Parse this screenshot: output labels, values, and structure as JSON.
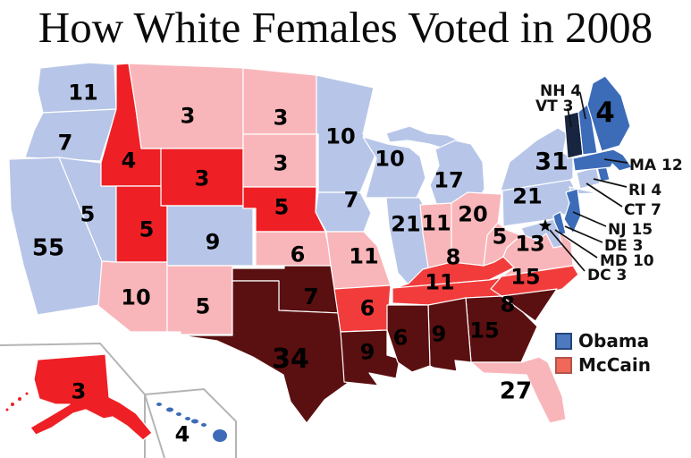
{
  "title": "How White Females Voted in 2008",
  "legend": {
    "items": [
      {
        "id": "obama",
        "label": "Obama",
        "swatch_fill": "#4d79c0",
        "swatch_border": "#24457c"
      },
      {
        "id": "mccain",
        "label": "McCain",
        "swatch_fill": "#f1685b",
        "swatch_border": "#b0544b"
      }
    ]
  },
  "palette": {
    "obama-dark": "#182540",
    "obama-medium": "#3c6cb8",
    "obama-light": "#b7c6e8",
    "mccain-light": "#f9b6ba",
    "mccain-medium": "#f23c3c",
    "mccain-strong": "#ee2025",
    "mccain-dark": "#5a0f10",
    "state_border": "#ffffff",
    "inset_border": "#b4b4b4",
    "label_color": "#000000"
  },
  "states": [
    {
      "abbr": "WA",
      "votes": "11",
      "category": "obama-light"
    },
    {
      "abbr": "OR",
      "votes": "7",
      "category": "obama-light"
    },
    {
      "abbr": "CA",
      "votes": "55",
      "category": "obama-light"
    },
    {
      "abbr": "NV",
      "votes": "5",
      "category": "obama-light"
    },
    {
      "abbr": "ID",
      "votes": "4",
      "category": "mccain-strong"
    },
    {
      "abbr": "MT",
      "votes": "3",
      "category": "mccain-light"
    },
    {
      "abbr": "WY",
      "votes": "3",
      "category": "mccain-strong"
    },
    {
      "abbr": "UT",
      "votes": "5",
      "category": "mccain-strong"
    },
    {
      "abbr": "CO",
      "votes": "9",
      "category": "obama-light"
    },
    {
      "abbr": "AZ",
      "votes": "10",
      "category": "mccain-light"
    },
    {
      "abbr": "NM",
      "votes": "5",
      "category": "mccain-light"
    },
    {
      "abbr": "ND",
      "votes": "3",
      "category": "mccain-light"
    },
    {
      "abbr": "SD",
      "votes": "3",
      "category": "mccain-light"
    },
    {
      "abbr": "NE",
      "votes": "5",
      "category": "mccain-strong"
    },
    {
      "abbr": "KS",
      "votes": "6",
      "category": "mccain-light"
    },
    {
      "abbr": "OK",
      "votes": "7",
      "category": "mccain-dark"
    },
    {
      "abbr": "TX",
      "votes": "34",
      "category": "mccain-dark"
    },
    {
      "abbr": "MN",
      "votes": "10",
      "category": "obama-light"
    },
    {
      "abbr": "IA",
      "votes": "7",
      "category": "obama-light"
    },
    {
      "abbr": "MO",
      "votes": "11",
      "category": "mccain-light"
    },
    {
      "abbr": "AR",
      "votes": "6",
      "category": "mccain-medium"
    },
    {
      "abbr": "LA",
      "votes": "9",
      "category": "mccain-dark"
    },
    {
      "abbr": "WI",
      "votes": "10",
      "category": "obama-light"
    },
    {
      "abbr": "IL",
      "votes": "21",
      "category": "obama-light"
    },
    {
      "abbr": "MI",
      "votes": "17",
      "category": "obama-light"
    },
    {
      "abbr": "IN",
      "votes": "11",
      "category": "mccain-light"
    },
    {
      "abbr": "OH",
      "votes": "20",
      "category": "mccain-light"
    },
    {
      "abbr": "KY",
      "votes": "8",
      "category": "mccain-medium"
    },
    {
      "abbr": "TN",
      "votes": "11",
      "category": "mccain-medium"
    },
    {
      "abbr": "WV",
      "votes": "5",
      "category": "mccain-light"
    },
    {
      "abbr": "VA",
      "votes": "13",
      "category": "mccain-light"
    },
    {
      "abbr": "NC",
      "votes": "15",
      "category": "mccain-medium"
    },
    {
      "abbr": "SC",
      "votes": "8",
      "category": "mccain-dark"
    },
    {
      "abbr": "GA",
      "votes": "15",
      "category": "mccain-dark"
    },
    {
      "abbr": "AL",
      "votes": "9",
      "category": "mccain-dark"
    },
    {
      "abbr": "MS",
      "votes": "6",
      "category": "mccain-dark"
    },
    {
      "abbr": "FL",
      "votes": "27",
      "category": "mccain-light"
    },
    {
      "abbr": "PA",
      "votes": "21",
      "category": "obama-light"
    },
    {
      "abbr": "NY",
      "votes": "31",
      "category": "obama-light"
    },
    {
      "abbr": "NJ",
      "votes": "15",
      "category": "obama-medium"
    },
    {
      "abbr": "CT",
      "votes": "7",
      "category": "obama-light"
    },
    {
      "abbr": "RI",
      "votes": "4",
      "category": "obama-medium"
    },
    {
      "abbr": "MA",
      "votes": "12",
      "category": "obama-medium"
    },
    {
      "abbr": "VT",
      "votes": "3",
      "category": "obama-dark"
    },
    {
      "abbr": "NH",
      "votes": "4",
      "category": "obama-medium"
    },
    {
      "abbr": "ME",
      "votes": "4",
      "category": "obama-medium"
    },
    {
      "abbr": "DE",
      "votes": "3",
      "category": "obama-medium"
    },
    {
      "abbr": "MD",
      "votes": "10",
      "category": "obama-light"
    },
    {
      "abbr": "DC",
      "votes": "3"
    },
    {
      "abbr": "AK",
      "votes": "3",
      "category": "mccain-strong"
    },
    {
      "abbr": "HI",
      "votes": "4",
      "category": "obama-medium"
    }
  ],
  "callouts": [
    {
      "abbr": "NH",
      "label": "NH 4"
    },
    {
      "abbr": "VT",
      "label": "VT 3"
    },
    {
      "abbr": "MA",
      "label": "MA 12"
    },
    {
      "abbr": "RI",
      "label": "RI 4"
    },
    {
      "abbr": "CT",
      "label": "CT 7"
    },
    {
      "abbr": "NJ",
      "label": "NJ 15"
    },
    {
      "abbr": "DE",
      "label": "DE 3"
    },
    {
      "abbr": "MD",
      "label": "MD 10"
    },
    {
      "abbr": "DC",
      "label": "DC 3"
    }
  ]
}
